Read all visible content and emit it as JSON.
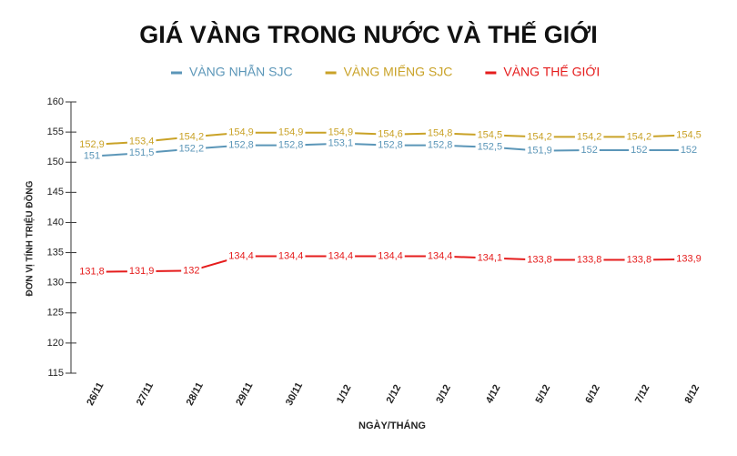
{
  "chart_data": {
    "type": "line",
    "title": "GIÁ VÀNG TRONG NƯỚC VÀ THẾ GIỚI",
    "x_label": "NGÀY/THÁNG",
    "y_label": "ĐƠN VỊ TÍNH TRIỆU ĐỒNG",
    "categories": [
      "26/11",
      "27/11",
      "28/11",
      "29/11",
      "30/11",
      "1/12",
      "2/12",
      "3/12",
      "4/12",
      "5/12",
      "6/12",
      "7/12",
      "8/12"
    ],
    "ylim": [
      115,
      160
    ],
    "yticks": [
      115,
      120,
      125,
      130,
      135,
      140,
      145,
      150,
      155,
      160
    ],
    "grid": false,
    "legend": "top",
    "series": [
      {
        "name": "VÀNG NHẪN SJC",
        "color": "#5b96b8",
        "values": [
          151,
          151.5,
          152.2,
          152.8,
          152.8,
          153.1,
          152.8,
          152.8,
          152.5,
          151.9,
          152,
          152,
          152
        ],
        "value_labels": [
          "151",
          "151,5",
          "152,2",
          "152,8",
          "152,8",
          "153,1",
          "152,8",
          "152,8",
          "152,5",
          "151,9",
          "152",
          "152",
          "152"
        ]
      },
      {
        "name": "VÀNG MIẾNG SJC",
        "color": "#c9a227",
        "values": [
          152.9,
          153.4,
          154.2,
          154.9,
          154.9,
          154.9,
          154.6,
          154.8,
          154.5,
          154.2,
          154.2,
          154.2,
          154.5
        ],
        "value_labels": [
          "152,9",
          "153,4",
          "154,2",
          "154,9",
          "154,9",
          "154,9",
          "154,6",
          "154,8",
          "154,5",
          "154,2",
          "154,2",
          "154,2",
          "154,5"
        ]
      },
      {
        "name": "VÀNG THẾ GIỚI",
        "color": "#e51c1c",
        "values": [
          131.8,
          131.9,
          132,
          134.4,
          134.4,
          134.4,
          134.4,
          134.4,
          134.1,
          133.8,
          133.8,
          133.8,
          133.9
        ],
        "value_labels": [
          "131,8",
          "131,9",
          "132",
          "134,4",
          "134,4",
          "134,4",
          "134,4",
          "134,4",
          "134,1",
          "133,8",
          "133,8",
          "133,8",
          "133,9"
        ]
      }
    ]
  }
}
